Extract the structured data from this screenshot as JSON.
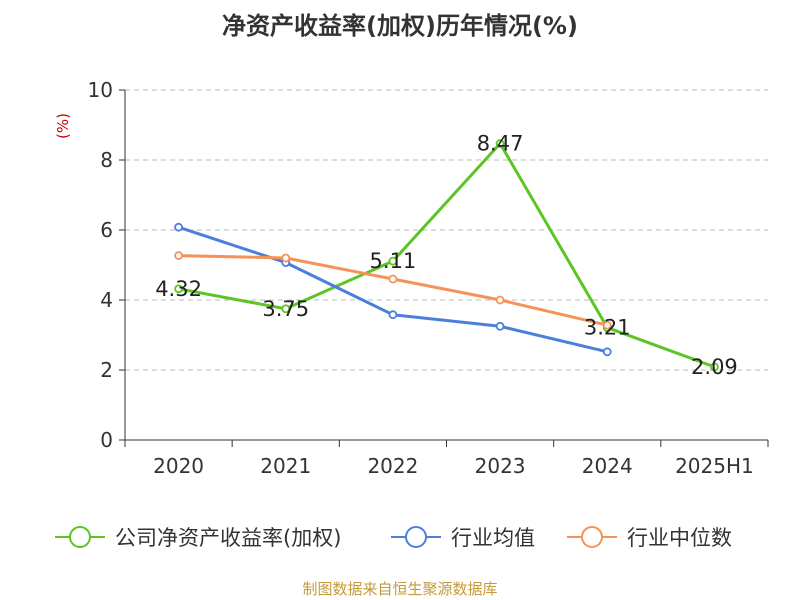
{
  "chart_data": {
    "type": "line",
    "title": "净资产收益率(加权)历年情况(%)",
    "ylabel": "(%)",
    "xlabel": "",
    "categories": [
      "2020",
      "2021",
      "2022",
      "2023",
      "2024",
      "2025H1"
    ],
    "ylim": [
      0,
      10
    ],
    "yticks": [
      0,
      2,
      4,
      6,
      8,
      10
    ],
    "grid": true,
    "legend_position": "bottom",
    "series": [
      {
        "name": "公司净资产收益率(加权)",
        "color": "#5bc524",
        "values": [
          4.32,
          3.75,
          5.11,
          8.47,
          3.21,
          2.09
        ],
        "labels": [
          "4.32",
          "3.75",
          "5.11",
          "8.47",
          "3.21",
          "2.09"
        ]
      },
      {
        "name": "行业均值",
        "color": "#4a7fdc",
        "values": [
          6.08,
          5.07,
          3.58,
          3.25,
          2.52,
          null
        ]
      },
      {
        "name": "行业中位数",
        "color": "#f5925a",
        "values": [
          5.27,
          5.2,
          4.6,
          4.0,
          3.28,
          null
        ]
      }
    ]
  },
  "footer": {
    "source": "制图数据来自恒生聚源数据库"
  }
}
